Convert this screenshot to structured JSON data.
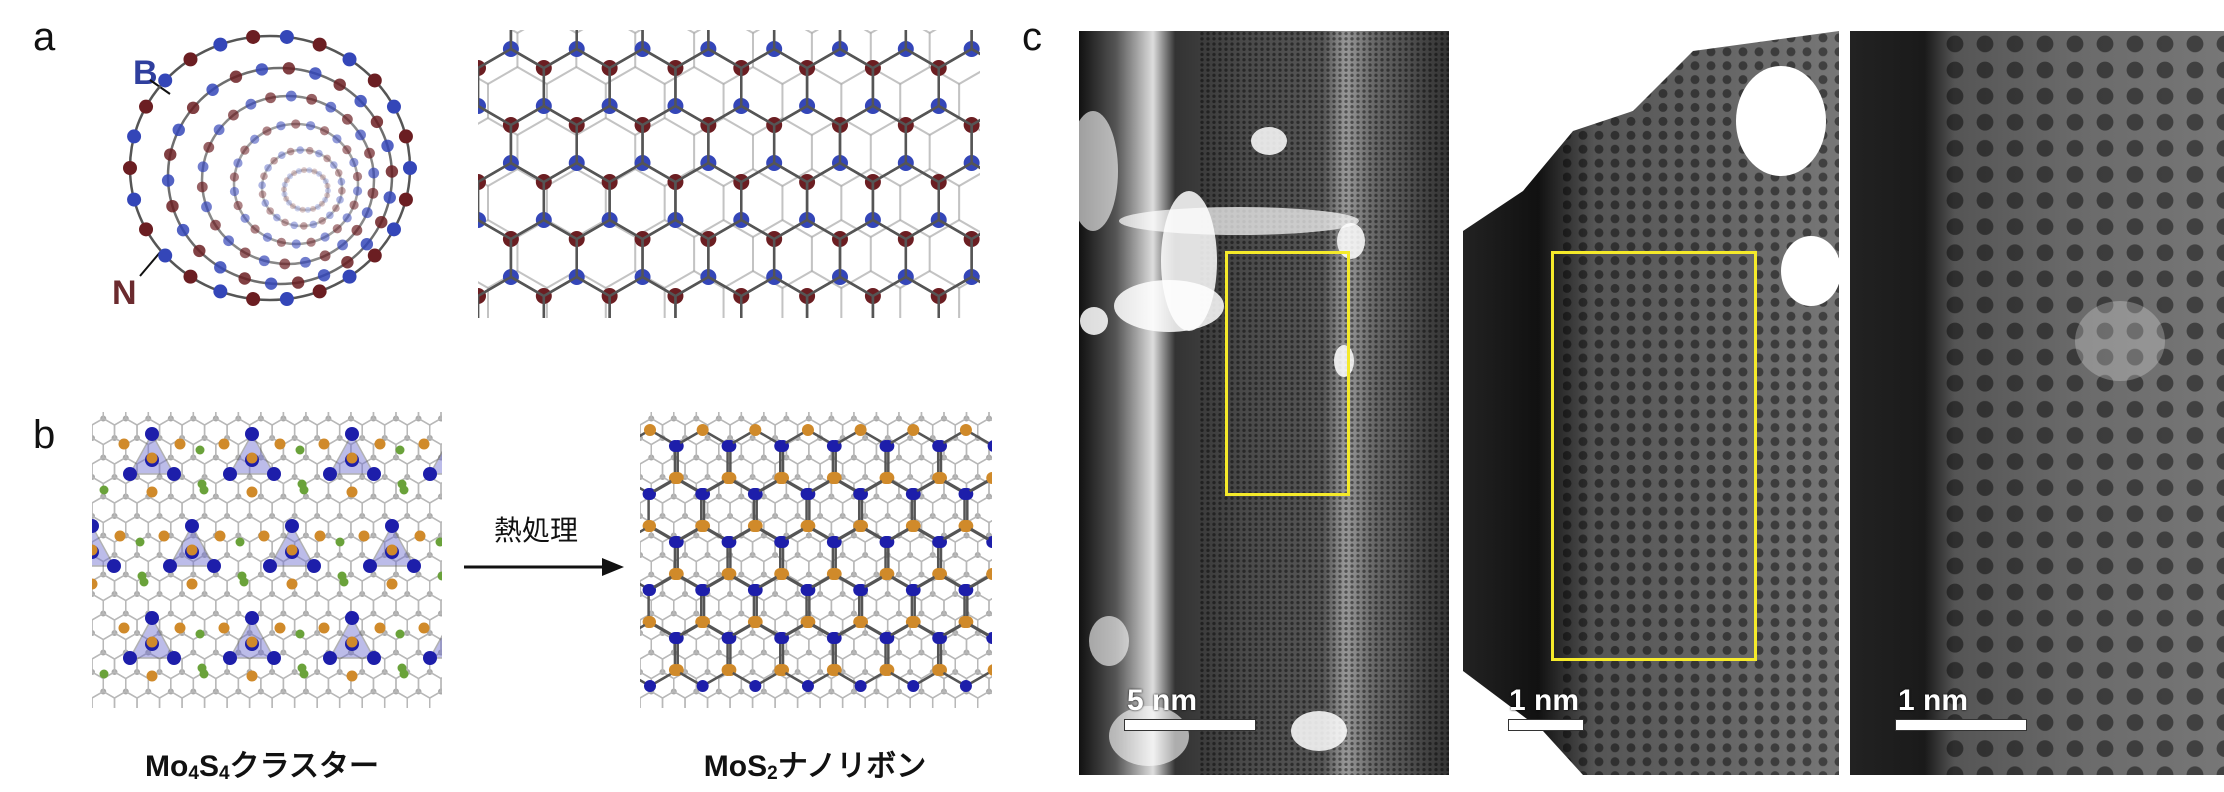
{
  "panels": {
    "a": {
      "label": "a",
      "atom_labels": {
        "boron": "B",
        "nitrogen": "N"
      },
      "colors": {
        "boron": "#3446b8",
        "nitrogen": "#6b1e22",
        "bond": "#555555"
      }
    },
    "b": {
      "label": "b",
      "arrow_label": "熱処理",
      "left_caption": {
        "prefix": "Mo",
        "sub1": "4",
        "mid": "S",
        "sub2": "4",
        "suffix": "クラスター"
      },
      "right_caption": {
        "prefix": "MoS",
        "sub1": "2",
        "suffix": "ナノリボン"
      },
      "colors": {
        "mo": "#1d1eaa",
        "s": "#d08a2a",
        "extra": "#6aa23a",
        "host": "#b8b8b8"
      }
    },
    "c": {
      "label": "c",
      "images": [
        {
          "scale_bar": "5 nm",
          "has_highlight_box": true
        },
        {
          "scale_bar": "1 nm",
          "has_highlight_box": true
        },
        {
          "scale_bar": "1 nm",
          "has_highlight_box": false
        }
      ],
      "highlight_color": "#f5ea2a"
    }
  }
}
